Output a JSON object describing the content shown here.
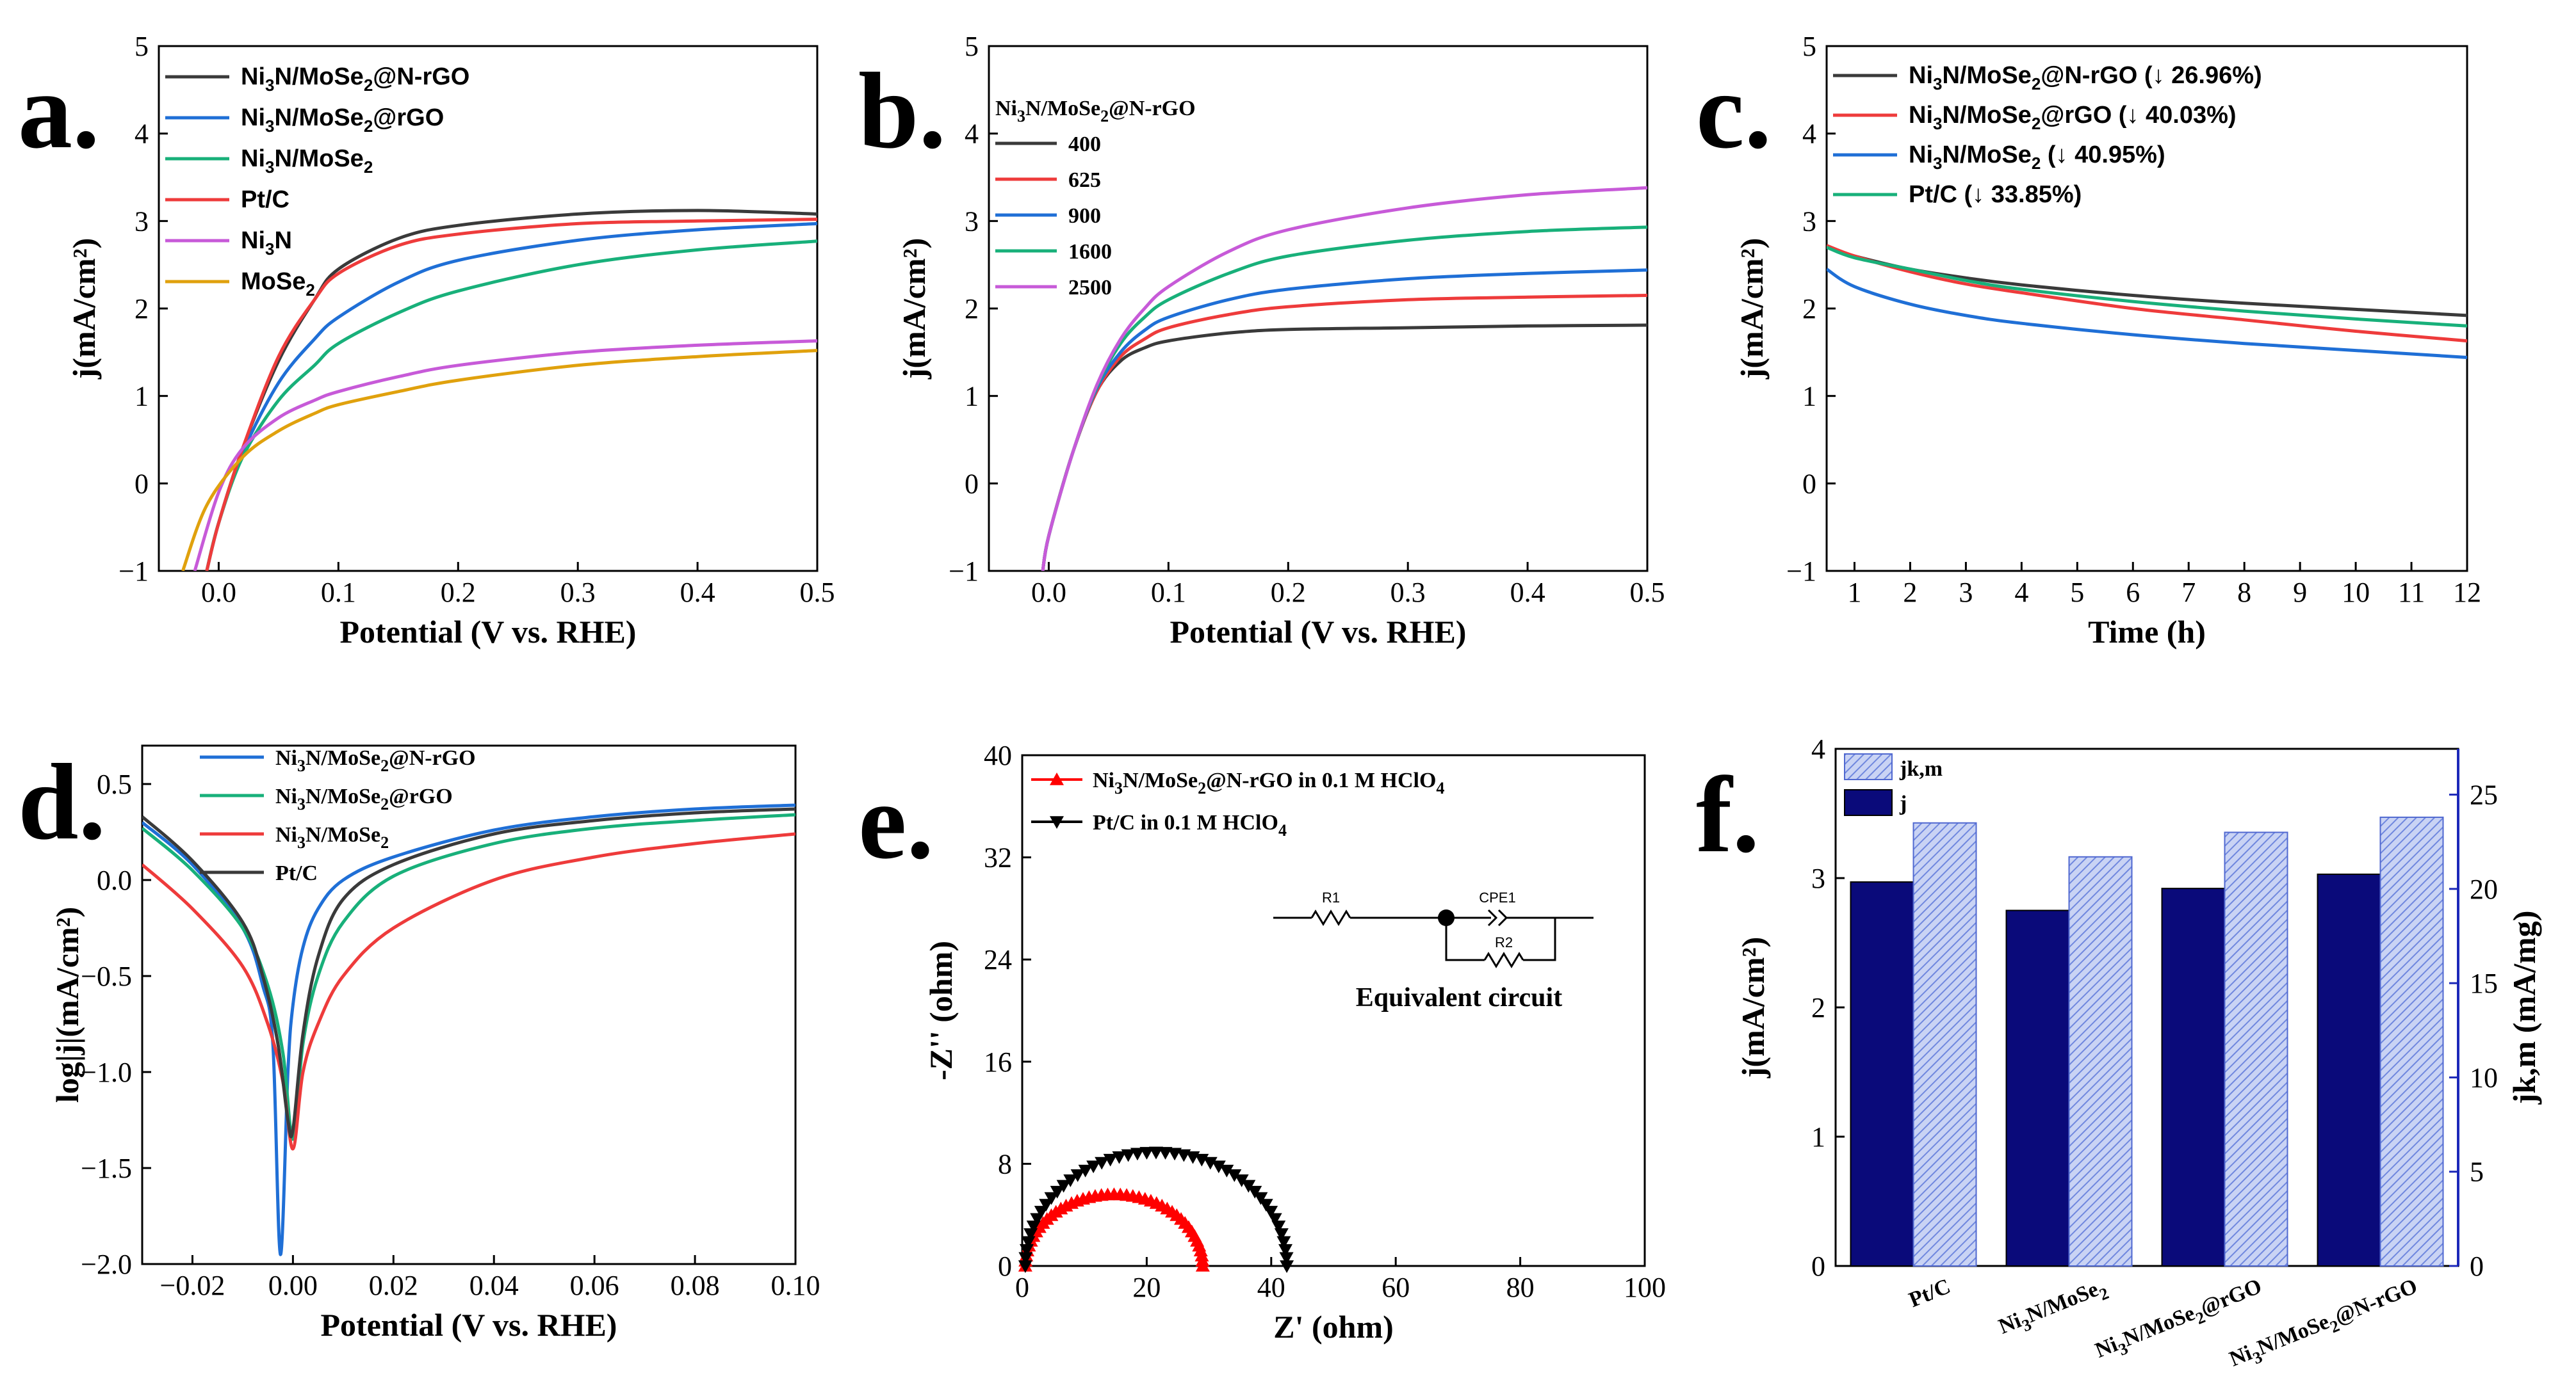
{
  "colors": {
    "black": "#3a3a3a",
    "blue": "#1f6fd6",
    "green": "#18b07a",
    "red": "#ee3b3b",
    "purple": "#c75ad8",
    "orange": "#e0a10d",
    "navy": "#0a0a7a",
    "hatch": "#8fa4e6",
    "eis_red": "#ff0000",
    "eis_black": "#000000"
  },
  "chart_data": [
    {
      "id": "a",
      "panel_label": "a.",
      "type": "line",
      "xlabel": "Potential (V vs. RHE)",
      "ylabel": "j(mA/cm²)",
      "xlim": [
        -0.05,
        0.5
      ],
      "ylim": [
        -1,
        5
      ],
      "xticks": [
        0.0,
        0.1,
        0.2,
        0.3,
        0.4,
        0.5
      ],
      "xtick_labels": [
        "0.0",
        "0.1",
        "0.2",
        "0.3",
        "0.4",
        "0.5"
      ],
      "yticks": [
        -1,
        0,
        1,
        2,
        3,
        4,
        5
      ],
      "ytick_labels": [
        "−1",
        "0",
        "1",
        "2",
        "3",
        "4",
        "5"
      ],
      "legend_position": "top-left",
      "series": [
        {
          "name": "Ni3N/MoSe2@N-rGO",
          "label": [
            "Ni",
            "3",
            "N/MoSe",
            "2",
            "@N-rGO"
          ],
          "color": "black",
          "x": [
            -0.01,
            0.0,
            0.02,
            0.05,
            0.08,
            0.1,
            0.15,
            0.2,
            0.3,
            0.4,
            0.5
          ],
          "y": [
            -1,
            -0.45,
            0.4,
            1.4,
            2.1,
            2.45,
            2.8,
            2.95,
            3.08,
            3.12,
            3.08
          ]
        },
        {
          "name": "Ni3N/MoSe2@rGO",
          "label": [
            "Ni",
            "3",
            "N/MoSe",
            "2",
            "@rGO"
          ],
          "color": "blue",
          "x": [
            -0.01,
            0.0,
            0.02,
            0.05,
            0.08,
            0.1,
            0.15,
            0.2,
            0.3,
            0.4,
            0.5
          ],
          "y": [
            -1,
            -0.45,
            0.35,
            1.15,
            1.65,
            1.9,
            2.3,
            2.55,
            2.78,
            2.9,
            2.97
          ]
        },
        {
          "name": "Ni3N/MoSe2",
          "label": [
            "Ni",
            "3",
            "N/MoSe",
            "2",
            ""
          ],
          "color": "green",
          "x": [
            -0.01,
            0.0,
            0.02,
            0.05,
            0.08,
            0.1,
            0.15,
            0.2,
            0.3,
            0.4,
            0.5
          ],
          "y": [
            -1,
            -0.45,
            0.3,
            0.95,
            1.35,
            1.6,
            1.95,
            2.2,
            2.5,
            2.67,
            2.77
          ]
        },
        {
          "name": "Pt/C",
          "label": [
            "Pt/C",
            "",
            "",
            "",
            ""
          ],
          "color": "red",
          "x": [
            -0.01,
            0.0,
            0.02,
            0.05,
            0.08,
            0.1,
            0.15,
            0.2,
            0.3,
            0.4,
            0.5
          ],
          "y": [
            -1,
            -0.45,
            0.4,
            1.45,
            2.1,
            2.4,
            2.72,
            2.85,
            2.97,
            3.0,
            3.02
          ]
        },
        {
          "name": "Ni3N",
          "label": [
            "Ni",
            "3",
            "N",
            "",
            ""
          ],
          "color": "purple",
          "x": [
            -0.02,
            0.0,
            0.02,
            0.05,
            0.08,
            0.1,
            0.15,
            0.2,
            0.3,
            0.4,
            0.5
          ],
          "y": [
            -1,
            -0.1,
            0.4,
            0.75,
            0.95,
            1.05,
            1.22,
            1.35,
            1.5,
            1.58,
            1.63
          ]
        },
        {
          "name": "MoSe2",
          "label": [
            "MoSe",
            "2",
            "",
            "",
            ""
          ],
          "color": "orange",
          "x": [
            -0.03,
            -0.01,
            0.02,
            0.05,
            0.08,
            0.1,
            0.15,
            0.2,
            0.3,
            0.4,
            0.5
          ],
          "y": [
            -1,
            -0.25,
            0.3,
            0.6,
            0.8,
            0.9,
            1.05,
            1.18,
            1.35,
            1.45,
            1.52
          ]
        }
      ]
    },
    {
      "id": "b",
      "panel_label": "b.",
      "type": "line",
      "xlabel": "Potential (V vs. RHE)",
      "ylabel": "j(mA/cm²)",
      "xlim": [
        -0.05,
        0.5
      ],
      "ylim": [
        -1,
        5
      ],
      "xticks": [
        0.0,
        0.1,
        0.2,
        0.3,
        0.4,
        0.5
      ],
      "xtick_labels": [
        "0.0",
        "0.1",
        "0.2",
        "0.3",
        "0.4",
        "0.5"
      ],
      "yticks": [
        -1,
        0,
        1,
        2,
        3,
        4,
        5
      ],
      "ytick_labels": [
        "−1",
        "0",
        "1",
        "2",
        "3",
        "4",
        "5"
      ],
      "legend_title": [
        "Ni",
        "3",
        "N/MoSe",
        "2",
        "@N-rGO"
      ],
      "legend_position": "top-left",
      "series": [
        {
          "name": "400",
          "label": [
            "400",
            "",
            "",
            "",
            ""
          ],
          "color": "black",
          "x": [
            -0.005,
            0.0,
            0.02,
            0.04,
            0.06,
            0.08,
            0.1,
            0.15,
            0.2,
            0.3,
            0.4,
            0.5
          ],
          "y": [
            -1,
            -0.6,
            0.35,
            1.05,
            1.4,
            1.55,
            1.63,
            1.72,
            1.76,
            1.78,
            1.8,
            1.81
          ]
        },
        {
          "name": "625",
          "label": [
            "625",
            "",
            "",
            "",
            ""
          ],
          "color": "red",
          "x": [
            -0.005,
            0.0,
            0.02,
            0.04,
            0.06,
            0.08,
            0.1,
            0.15,
            0.2,
            0.3,
            0.4,
            0.5
          ],
          "y": [
            -1,
            -0.6,
            0.35,
            1.05,
            1.45,
            1.65,
            1.78,
            1.93,
            2.02,
            2.1,
            2.13,
            2.15
          ]
        },
        {
          "name": "900",
          "label": [
            "900",
            "",
            "",
            "",
            ""
          ],
          "color": "blue",
          "x": [
            -0.005,
            0.0,
            0.02,
            0.04,
            0.06,
            0.08,
            0.1,
            0.15,
            0.2,
            0.3,
            0.4,
            0.5
          ],
          "y": [
            -1,
            -0.6,
            0.35,
            1.08,
            1.5,
            1.75,
            1.9,
            2.1,
            2.22,
            2.34,
            2.4,
            2.44
          ]
        },
        {
          "name": "1600",
          "label": [
            "1600",
            "",
            "",
            "",
            ""
          ],
          "color": "green",
          "x": [
            -0.005,
            0.0,
            0.02,
            0.04,
            0.06,
            0.08,
            0.1,
            0.15,
            0.2,
            0.3,
            0.4,
            0.5
          ],
          "y": [
            -1,
            -0.6,
            0.35,
            1.1,
            1.6,
            1.9,
            2.1,
            2.4,
            2.6,
            2.78,
            2.88,
            2.93
          ]
        },
        {
          "name": "2500",
          "label": [
            "2500",
            "",
            "",
            "",
            ""
          ],
          "color": "purple",
          "x": [
            -0.005,
            0.0,
            0.02,
            0.04,
            0.06,
            0.08,
            0.1,
            0.15,
            0.2,
            0.3,
            0.4,
            0.5
          ],
          "y": [
            -1,
            -0.6,
            0.35,
            1.12,
            1.65,
            2.0,
            2.25,
            2.65,
            2.9,
            3.15,
            3.3,
            3.38
          ]
        }
      ]
    },
    {
      "id": "c",
      "panel_label": "c.",
      "type": "line",
      "xlabel": "Time (h)",
      "ylabel": "j(mA/cm²)",
      "xlim": [
        0.5,
        12
      ],
      "ylim": [
        -1,
        5
      ],
      "xticks": [
        1,
        2,
        3,
        4,
        5,
        6,
        7,
        8,
        9,
        10,
        11,
        12
      ],
      "xtick_labels": [
        "1",
        "2",
        "3",
        "4",
        "5",
        "6",
        "7",
        "8",
        "9",
        "10",
        "11",
        "12"
      ],
      "yticks": [
        -1,
        0,
        1,
        2,
        3,
        4,
        5
      ],
      "ytick_labels": [
        "−1",
        "0",
        "1",
        "2",
        "3",
        "4",
        "5"
      ],
      "legend_position": "top-left",
      "series": [
        {
          "name": "Ni3N/MoSe2@N-rGO (↓ 26.96%)",
          "label": [
            "Ni",
            "3",
            "N/MoSe",
            "2",
            "@N-rGO (↓ 26.96%)"
          ],
          "color": "black",
          "x": [
            0.5,
            1,
            2,
            3,
            4,
            6,
            8,
            10,
            12
          ],
          "y": [
            2.7,
            2.6,
            2.45,
            2.35,
            2.27,
            2.15,
            2.06,
            1.99,
            1.92
          ]
        },
        {
          "name": "Ni3N/MoSe2@rGO (↓ 40.03%)",
          "label": [
            "Ni",
            "3",
            "N/MoSe",
            "2",
            "@rGO (↓ 40.03%)"
          ],
          "color": "red",
          "x": [
            0.5,
            1,
            2,
            3,
            4,
            6,
            8,
            10,
            12
          ],
          "y": [
            2.72,
            2.6,
            2.42,
            2.28,
            2.18,
            2.0,
            1.87,
            1.74,
            1.63
          ]
        },
        {
          "name": "Ni3N/MoSe2 (↓ 40.95%)",
          "label": [
            "Ni",
            "3",
            "N/MoSe",
            "2",
            " (↓ 40.95%)"
          ],
          "color": "blue",
          "x": [
            0.5,
            1,
            2,
            3,
            4,
            6,
            8,
            10,
            12
          ],
          "y": [
            2.45,
            2.25,
            2.05,
            1.92,
            1.83,
            1.7,
            1.6,
            1.52,
            1.44
          ]
        },
        {
          "name": "Pt/C (↓ 33.85%)",
          "label": [
            "Pt/C (↓ 33.85%)",
            "",
            "",
            "",
            ""
          ],
          "color": "green",
          "x": [
            0.5,
            1,
            2,
            3,
            4,
            6,
            8,
            10,
            12
          ],
          "y": [
            2.7,
            2.58,
            2.45,
            2.32,
            2.22,
            2.08,
            1.97,
            1.88,
            1.8
          ]
        }
      ]
    },
    {
      "id": "d",
      "panel_label": "d.",
      "type": "line",
      "xlabel": "Potential (V vs. RHE)",
      "ylabel": "log|j|(mA/cm²)",
      "xlim": [
        -0.03,
        0.1
      ],
      "ylim": [
        -2.0,
        0.7
      ],
      "xticks": [
        -0.02,
        0.0,
        0.02,
        0.04,
        0.06,
        0.08,
        0.1
      ],
      "xtick_labels": [
        "−0.02",
        "0.00",
        "0.02",
        "0.04",
        "0.06",
        "0.08",
        "0.10"
      ],
      "yticks": [
        -2.0,
        -1.5,
        -1.0,
        -0.5,
        0.0,
        0.5
      ],
      "ytick_labels": [
        "−2.0",
        "−1.5",
        "−1.0",
        "−0.5",
        "0.0",
        "0.5"
      ],
      "legend_position": "top-left",
      "series": [
        {
          "name": "Ni3N/MoSe2@N-rGO",
          "label": [
            "Ni",
            "3",
            "N/MoSe",
            "2",
            "@N-rGO"
          ],
          "color": "blue",
          "x": [
            -0.03,
            -0.02,
            -0.01,
            -0.006,
            -0.004,
            -0.0025,
            -0.001,
            0.0,
            0.002,
            0.005,
            0.01,
            0.02,
            0.04,
            0.06,
            0.08,
            0.1
          ],
          "y": [
            0.3,
            0.08,
            -0.25,
            -0.55,
            -0.85,
            -1.95,
            -1.0,
            -0.65,
            -0.35,
            -0.15,
            0.0,
            0.12,
            0.26,
            0.33,
            0.37,
            0.39
          ]
        },
        {
          "name": "Ni3N/MoSe2@rGO",
          "label": [
            "Ni",
            "3",
            "N/MoSe",
            "2",
            "@rGO"
          ],
          "color": "green",
          "x": [
            -0.03,
            -0.02,
            -0.01,
            -0.005,
            -0.002,
            0.0,
            0.002,
            0.005,
            0.01,
            0.02,
            0.04,
            0.06,
            0.08,
            0.1
          ],
          "y": [
            0.27,
            0.05,
            -0.25,
            -0.55,
            -0.9,
            -1.35,
            -0.85,
            -0.5,
            -0.22,
            0.02,
            0.19,
            0.27,
            0.31,
            0.34
          ]
        },
        {
          "name": "Ni3N/MoSe2",
          "label": [
            "Ni",
            "3",
            "N/MoSe",
            "2",
            ""
          ],
          "color": "red",
          "x": [
            -0.03,
            -0.02,
            -0.01,
            -0.005,
            -0.002,
            0.0,
            0.002,
            0.005,
            0.01,
            0.02,
            0.04,
            0.06,
            0.08,
            0.1
          ],
          "y": [
            0.08,
            -0.15,
            -0.45,
            -0.75,
            -1.05,
            -1.4,
            -1.0,
            -0.75,
            -0.5,
            -0.25,
            0.0,
            0.12,
            0.19,
            0.24
          ]
        },
        {
          "name": "Pt/C",
          "label": [
            "Pt/C",
            "",
            "",
            "",
            ""
          ],
          "color": "black",
          "x": [
            -0.03,
            -0.02,
            -0.01,
            -0.006,
            -0.003,
            -0.001,
            0.0,
            0.002,
            0.005,
            0.01,
            0.02,
            0.04,
            0.06,
            0.08,
            0.1
          ],
          "y": [
            0.33,
            0.1,
            -0.22,
            -0.5,
            -0.85,
            -1.25,
            -1.3,
            -0.8,
            -0.4,
            -0.1,
            0.08,
            0.24,
            0.31,
            0.35,
            0.37
          ]
        }
      ]
    },
    {
      "id": "e",
      "panel_label": "e.",
      "type": "scatter",
      "xlabel": "Z' (ohm)",
      "ylabel": "-Z'' (ohm)",
      "xlim": [
        0,
        100
      ],
      "ylim": [
        0,
        40
      ],
      "xticks": [
        0,
        20,
        40,
        60,
        80,
        100
      ],
      "xtick_labels": [
        "0",
        "20",
        "40",
        "60",
        "80",
        "100"
      ],
      "yticks": [
        0,
        8,
        16,
        24,
        32,
        40
      ],
      "ytick_labels": [
        "0",
        "8",
        "16",
        "24",
        "32",
        "40"
      ],
      "legend_position": "top-left",
      "series": [
        {
          "name": "Ni3N/MoSe2@N-rGO in 0.1 M HClO4",
          "label": [
            "Ni",
            "3",
            "N/MoSe",
            "2",
            "@N-rGO in 0.1 M HClO",
            "4"
          ],
          "color": "eis_red",
          "marker": "triangle-up",
          "semicircle": {
            "r_start": 0.5,
            "r_end": 29.0,
            "peak": 5.6
          }
        },
        {
          "name": "Pt/C in 0.1 M HClO4",
          "label": [
            "Pt/C in 0.1 M HClO",
            "4",
            "",
            "",
            "",
            ""
          ],
          "color": "eis_black",
          "marker": "triangle-down",
          "semicircle": {
            "r_start": 0.5,
            "r_end": 42.5,
            "peak": 8.9
          }
        }
      ],
      "inset": {
        "title": "Equivalent circuit",
        "r1": "R1",
        "r2": "R2",
        "cpe": "CPE1"
      }
    },
    {
      "id": "f",
      "panel_label": "f.",
      "type": "bar",
      "ylabel": "j(mA/cm²)",
      "y2label": "jk,m (mA/mg)",
      "categories": [
        "Pt/C",
        "Ni3N/MoSe2",
        "Ni3N/MoSe2@rGO",
        "Ni3N/MoSe2@N-rGO"
      ],
      "category_labels": [
        [
          "Pt/C",
          "",
          "",
          "",
          ""
        ],
        [
          "Ni",
          "3",
          "N/MoSe",
          "2",
          ""
        ],
        [
          "Ni",
          "3",
          "N/MoSe",
          "2",
          "@rGO"
        ],
        [
          "Ni",
          "3",
          "N/MoSe",
          "2",
          "@N-rGO"
        ]
      ],
      "ylim": [
        0,
        4
      ],
      "y2lim": [
        0,
        27.43
      ],
      "yticks": [
        0,
        1,
        2,
        3,
        4
      ],
      "ytick_labels": [
        "0",
        "1",
        "2",
        "3",
        "4"
      ],
      "y2ticks": [
        0,
        5,
        10,
        15,
        20,
        25
      ],
      "y2tick_labels": [
        "0",
        "5",
        "10",
        "15",
        "20",
        "25"
      ],
      "legend_position": "top-left",
      "series": [
        {
          "name": "j",
          "label": "j",
          "axis": "left",
          "color": "navy",
          "values": [
            2.97,
            2.75,
            2.92,
            3.03
          ]
        },
        {
          "name": "jk,m",
          "label": "jk,m",
          "axis": "right",
          "color": "hatch",
          "values": [
            23.5,
            21.7,
            23.0,
            23.8
          ]
        }
      ]
    }
  ]
}
